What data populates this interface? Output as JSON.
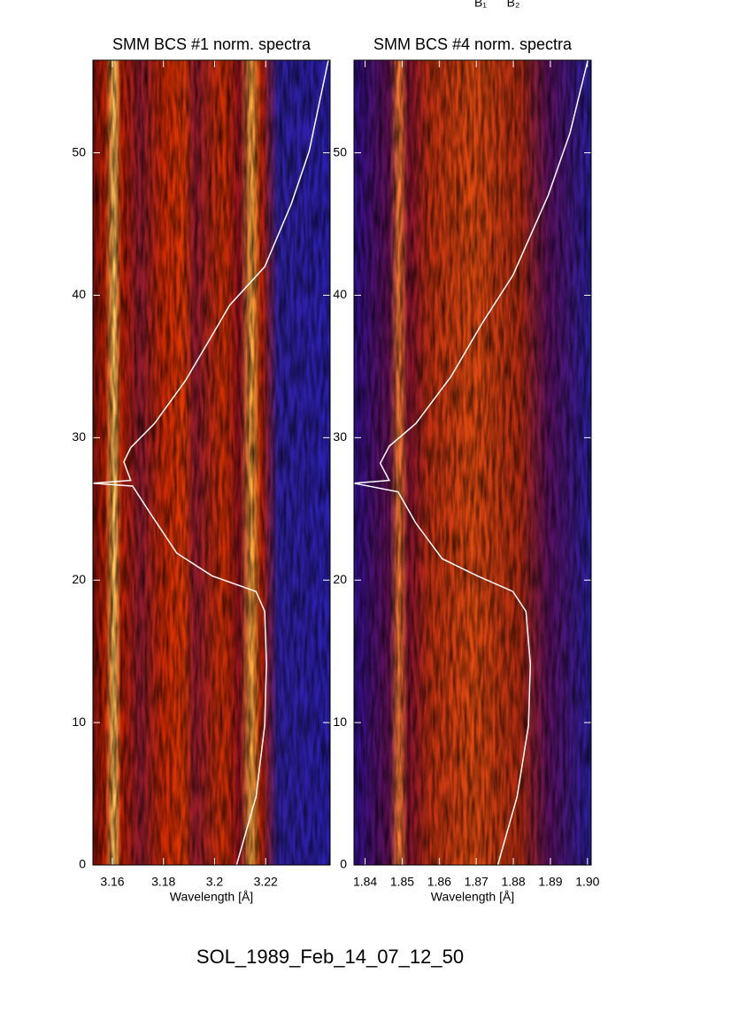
{
  "chart_data": [
    {
      "type": "line",
      "title": "SMM BCS #1 norm. spectra",
      "x_label": "Wavelength [Å]",
      "xlim": [
        3.1524,
        3.2452
      ],
      "xticks": [
        3.16,
        3.18,
        3.2,
        3.22
      ],
      "ylim": [
        0,
        56.5
      ],
      "yticks": [
        0,
        10,
        20,
        30,
        40,
        50
      ],
      "series": [
        {
          "color": "#ffffff",
          "x": [
            3.2086,
            3.2162,
            3.2196,
            3.2203,
            3.2196,
            3.2162,
            3.199,
            3.1852,
            3.1748,
            3.1679,
            3.1524,
            3.1672,
            3.1645,
            3.1672,
            3.1765,
            3.1886,
            3.2007,
            3.2059,
            3.2196,
            3.23,
            3.237,
            3.2445
          ],
          "values": [
            0,
            4.8,
            9.8,
            14.1,
            17.8,
            19.2,
            20.3,
            21.9,
            24.7,
            26.6,
            26.8,
            27.0,
            28.3,
            29.3,
            31.0,
            34.0,
            37.7,
            39.3,
            42.0,
            46.4,
            50.1,
            56.5
          ]
        }
      ]
    },
    {
      "type": "line",
      "title": "SMM BCS #4 norm. spectra",
      "x_label": "Wavelength [Å]",
      "xlim": [
        1.837,
        1.901
      ],
      "xticks": [
        1.84,
        1.85,
        1.86,
        1.87,
        1.88,
        1.89,
        {
          "value": 1.9,
          "label": "1.90"
        }
      ],
      "ylim": [
        0,
        56.5
      ],
      "yticks": [
        0,
        10,
        20,
        30,
        40,
        50
      ],
      "series": [
        {
          "color": "#ffffff",
          "x": [
            1.8758,
            1.881,
            1.8841,
            1.8846,
            1.8834,
            1.8799,
            1.8703,
            1.8608,
            1.8537,
            1.8489,
            1.837,
            1.8465,
            1.8441,
            1.8465,
            1.8537,
            1.8632,
            1.8715,
            1.8799,
            1.8894,
            1.8953,
            1.9001
          ],
          "values": [
            0,
            4.8,
            9.8,
            14.1,
            17.8,
            19.2,
            20.3,
            21.5,
            24.0,
            26.2,
            26.8,
            27.0,
            28.2,
            29.4,
            31.0,
            34.3,
            38.0,
            41.4,
            47.0,
            51.4,
            56.5
          ]
        }
      ]
    }
  ],
  "annotations": [
    "B₁",
    "B₂"
  ],
  "footer": "SOL_1989_Feb_14_07_12_50"
}
